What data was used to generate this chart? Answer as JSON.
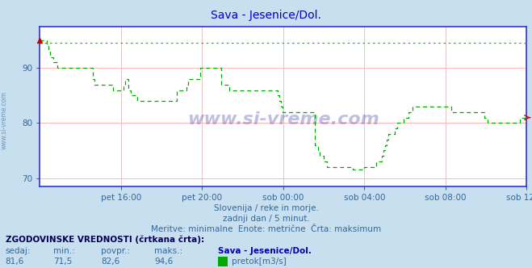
{
  "title": "Sava - Jesenice/Dol.",
  "title_color": "#0000cc",
  "bg_color": "#c8dff0",
  "plot_bg_color": "#ffffff",
  "grid_color_h": "#ffaaaa",
  "grid_color_v": "#ddbbbb",
  "line_color": "#00aa00",
  "max_line_color": "#00cc00",
  "axis_color": "#3333cc",
  "tick_color": "#336699",
  "text_color": "#336699",
  "watermark": "www.si-vreme.com",
  "watermark_color": "#1a1a8c",
  "subtitle1": "Slovenija / reke in morje.",
  "subtitle2": "zadnji dan / 5 minut.",
  "subtitle3": "Meritve: minimalne  Enote: metrične  Črta: maksimum",
  "footer_label": "ZGODOVINSKE VREDNOSTI (črtkana črta):",
  "footer_name": "Sava - Jesenice/Dol.",
  "footer_unit": "pretok[m3/s]",
  "val_sedaj": "81,6",
  "val_min": "71,5",
  "val_povpr": "82,6",
  "val_maks": "94,6",
  "ymin": 68.5,
  "ymax": 97.5,
  "yticks": [
    70,
    80,
    90
  ],
  "max_value": 94.6,
  "xtick_labels": [
    "pet 16:00",
    "pet 20:00",
    "sob 00:00",
    "sob 04:00",
    "sob 08:00",
    "sob 12:00"
  ],
  "xtick_positions_norm": [
    0.1666,
    0.3333,
    0.5,
    0.6666,
    0.8333,
    1.0
  ],
  "flow_data": [
    95,
    95,
    95,
    95,
    94,
    93,
    92,
    92,
    91,
    91,
    90,
    90,
    90,
    90,
    90,
    90,
    90,
    90,
    90,
    90,
    90,
    90,
    90,
    90,
    90,
    90,
    90,
    90,
    90,
    90,
    90,
    88,
    87,
    87,
    87,
    87,
    87,
    87,
    87,
    87,
    87,
    87,
    87,
    86,
    86,
    86,
    86,
    86,
    86,
    87,
    88,
    88,
    86,
    85,
    85,
    85,
    85,
    84,
    84,
    84,
    84,
    84,
    84,
    84,
    84,
    84,
    84,
    84,
    84,
    84,
    84,
    84,
    84,
    84,
    84,
    84,
    84,
    84,
    84,
    84,
    86,
    86,
    86,
    86,
    86,
    86,
    87,
    88,
    88,
    88,
    88,
    88,
    88,
    88,
    90,
    90,
    90,
    90,
    90,
    90,
    90,
    90,
    90,
    90,
    90,
    90,
    87,
    87,
    87,
    87,
    87,
    86,
    86,
    86,
    86,
    86,
    86,
    86,
    86,
    86,
    86,
    86,
    86,
    86,
    86,
    86,
    86,
    86,
    86,
    86,
    86,
    86,
    86,
    86,
    86,
    86,
    86,
    86,
    86,
    85,
    84,
    83,
    82,
    82,
    82,
    82,
    82,
    82,
    82,
    82,
    82,
    82,
    82,
    82,
    82,
    82,
    82,
    82,
    82,
    82,
    82,
    76,
    76,
    75,
    74,
    74,
    73,
    73,
    72,
    72,
    72,
    72,
    72,
    72,
    72,
    72,
    72,
    72,
    72,
    72,
    72,
    72,
    72,
    71.5,
    71.5,
    71.5,
    71.5,
    71.5,
    71.5,
    71.5,
    72,
    72,
    72,
    72,
    72,
    72,
    72,
    73,
    73,
    73,
    74,
    75,
    76,
    77,
    78,
    78,
    78,
    78,
    79,
    80,
    80,
    80,
    80,
    81,
    81,
    81,
    82,
    82,
    83,
    83,
    83,
    83,
    83,
    83,
    83,
    83,
    83,
    83,
    83,
    83,
    83,
    83,
    83,
    83,
    83,
    83,
    83,
    83,
    83,
    83,
    83,
    82,
    82,
    82,
    82,
    82,
    82,
    82,
    82,
    82,
    82,
    82,
    82,
    82,
    82,
    82,
    82,
    82,
    82,
    82,
    81,
    81,
    80,
    80,
    80,
    80,
    80,
    80,
    80,
    80,
    80,
    80,
    80,
    80,
    80,
    80,
    80,
    80,
    80,
    80,
    80,
    81,
    81,
    81,
    81,
    81
  ]
}
